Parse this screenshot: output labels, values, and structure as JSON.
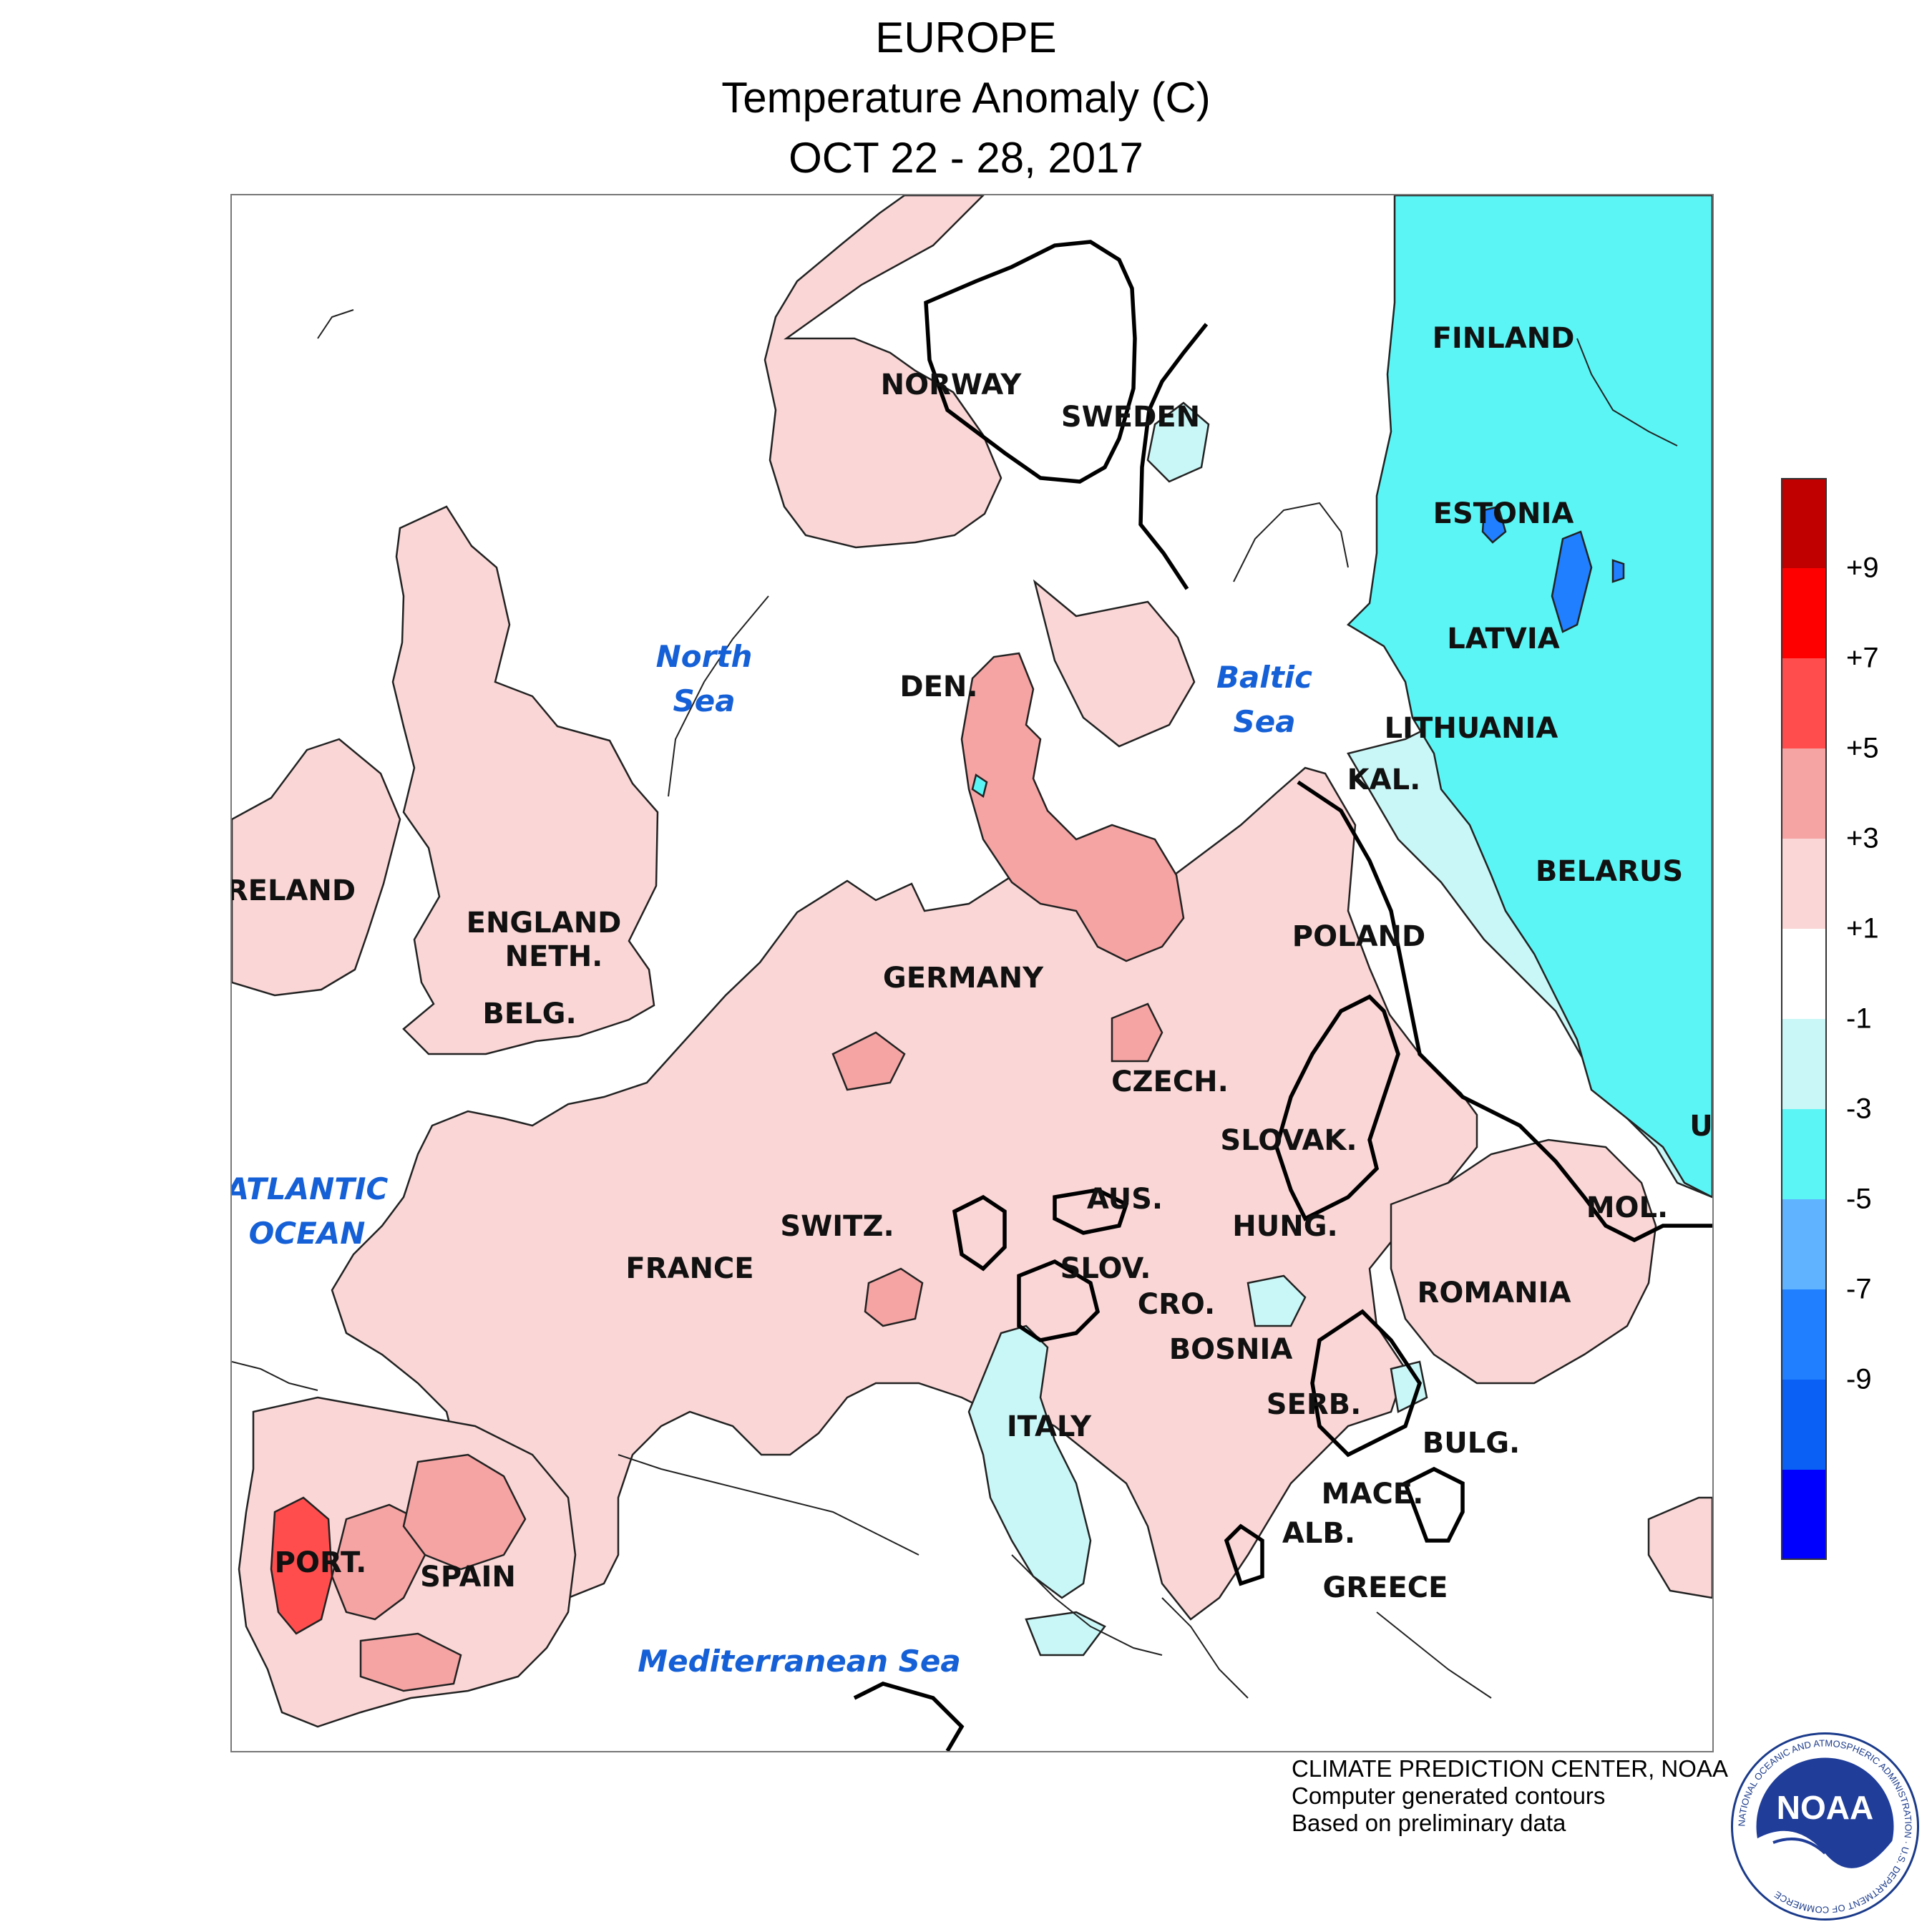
{
  "title": {
    "region": "EUROPE",
    "variable": "Temperature Anomaly (C)",
    "period": "OCT 22 - 28, 2017"
  },
  "legend": {
    "colors": [
      "#c00000",
      "#ff0000",
      "#ff4d4d",
      "#f5a3a3",
      "#fad6d6",
      "#ffffff",
      "#c9f7f7",
      "#5cf5f5",
      "#5fb3ff",
      "#1f7fff",
      "#0a5ff5",
      "#0000ff"
    ],
    "labels": [
      "+9",
      "+7",
      "+5",
      "+3",
      "+1",
      "-1",
      "-3",
      "-5",
      "-7",
      "-9"
    ]
  },
  "countries": [
    "NORWAY",
    "SWEDEN",
    "FINLAND",
    "ESTONIA",
    "LATVIA",
    "LITHUANIA",
    "KAL.",
    "BELARUS",
    "DEN.",
    "IRELAND",
    "ENGLAND",
    "NETH.",
    "BELG.",
    "GERMANY",
    "POLAND",
    "CZECH.",
    "SLOVAK.",
    "UK",
    "AUS.",
    "HUNG.",
    "MOL.",
    "SWITZ.",
    "FRANCE",
    "SLOV.",
    "CRO.",
    "ROMANIA",
    "BOSNIA",
    "SERB.",
    "BULG.",
    "ITALY",
    "MACE.",
    "ALB.",
    "GREECE",
    "PORT.",
    "SPAIN"
  ],
  "seas": {
    "north": "North\nSea",
    "baltic": "Baltic\nSea",
    "atlantic": "ATLANTIC\nOCEAN",
    "med": "Mediterranean Sea"
  },
  "credits": {
    "line1": "CLIMATE PREDICTION CENTER, NOAA",
    "line2": "Computer generated contours",
    "line3": "Based on preliminary data"
  },
  "logo": {
    "text": "NOAA",
    "ring": "NATIONAL OCEANIC AND ATMOSPHERIC ADMINISTRATION · U.S. DEPARTMENT OF COMMERCE"
  }
}
